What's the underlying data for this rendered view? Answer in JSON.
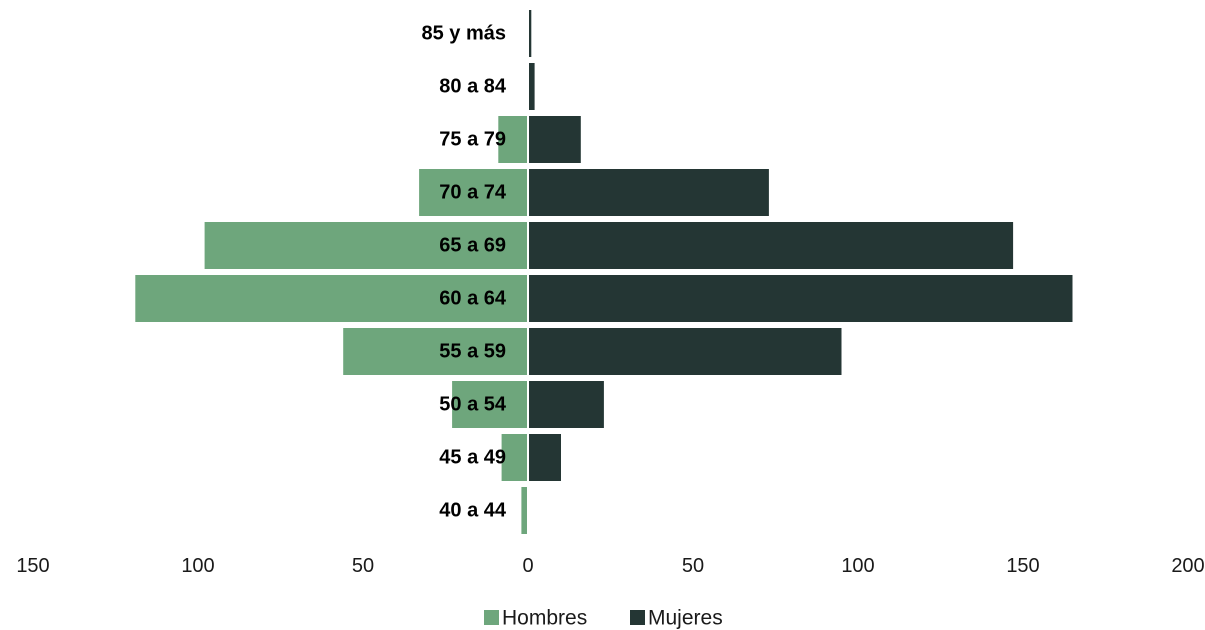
{
  "chart_data": {
    "type": "bar",
    "orientation": "horizontal",
    "subtype": "population-pyramid",
    "title": "",
    "xlabel": "",
    "ylabel": "",
    "xlim": [
      -150,
      200
    ],
    "x_ticks": [
      {
        "value": -150,
        "label": "150"
      },
      {
        "value": -100,
        "label": "100"
      },
      {
        "value": -50,
        "label": "50"
      },
      {
        "value": 0,
        "label": "0"
      },
      {
        "value": 50,
        "label": "50"
      },
      {
        "value": 100,
        "label": "100"
      },
      {
        "value": 150,
        "label": "150"
      },
      {
        "value": 200,
        "label": "200"
      }
    ],
    "categories": [
      "85 y más",
      "80 a 84",
      "75 a 79",
      "70 a 74",
      "65 a 69",
      "60 a 64",
      "55 a 59",
      "50 a 54",
      "45 a 49",
      "40 a 44"
    ],
    "series": [
      {
        "name": "Hombres",
        "color": "#6ea67c",
        "direction": "left",
        "values": [
          0,
          0,
          9,
          33,
          98,
          119,
          56,
          23,
          8,
          2
        ]
      },
      {
        "name": "Mujeres",
        "color": "#243634",
        "direction": "right",
        "values": [
          1,
          2,
          16,
          73,
          147,
          165,
          95,
          23,
          10,
          0
        ]
      }
    ],
    "grid": false,
    "legend": {
      "position": "bottom-center"
    }
  }
}
